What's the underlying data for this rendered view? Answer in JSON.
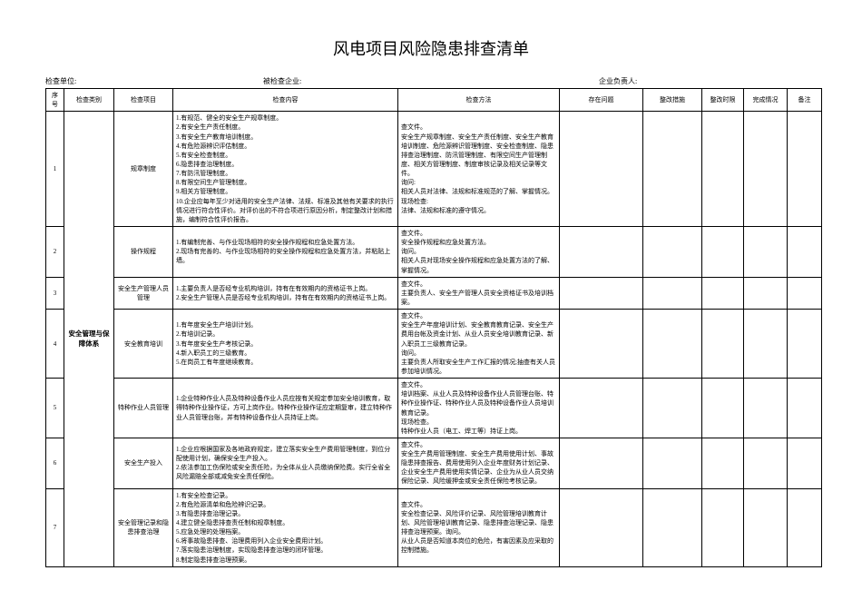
{
  "title": "风电项目风险隐患排查清单",
  "meta": {
    "label_check_unit": "检查单位:",
    "label_checked_co": "被检查企业:",
    "label_owner": "企业负责人:"
  },
  "headers": {
    "seq": "序号",
    "cat": "检查类别",
    "item": "检查项目",
    "content": "检查内容",
    "method": "检查方法",
    "prob": "存在问题",
    "meas": "整改措施",
    "time": "整改时限",
    "done": "完成情况",
    "note": "备注"
  },
  "category": "安全管理与保障体系",
  "rows": [
    {
      "seq": "1",
      "item": "规章制度",
      "content": "1.有规范、健全的安全生产规章制度。\n2.有安全生产责任制度。\n3.有安全生产教育培训制度。\n4.有危险源辨识评估制度。\n5.有安全检查制度。\n6.隐患排查治理制度。\n7.有防汛管理制度。\n8.有限空间生产管理制度。\n9.相关方管理制度。\n10.企业应每年至少对适用的安全生产法律、法规、标准及其他有关要求的执行情况进行符合性评价。对评价出的不符合项进行原因分析，制定整改计划和措施，编制符合性评价报告。",
      "method": "查文件。\n安全生产规章制度、安全生产责任制度、安全生产教育培训制度、危险源辨识管理制度、安全检查制度、隐患排查治理制度、防汛管理制度、有限空间生产管理制度、相关方管理制度、制度审核记录及相关记录等文件。\n询问:\n相关人员对法律、法规和标准规范的了解、掌握情况。\n现场检查:\n法律、法规和标准的遵守情况。"
    },
    {
      "seq": "2",
      "item": "操作规程",
      "content": "1.有编制完善、与作业现场相符的安全操作规程和应急处置方法。\n2.现场有完善的、与作业现场相符的安全操作规程和应急处置方法，并粘贴上墙。",
      "method": "查文件。\n安全操作规程和应急处置方法。\n询问。\n相关人员对现场安全操作规程和应急处置方法的了解、掌握情况。"
    },
    {
      "seq": "3",
      "item": "安全生产管理人员管理",
      "content": "1.主要负责人是否经专业机构培训，持有在有效期内的资格证书上岗。\n2.安全生产管理人员是否经专业机构培训，持有在有效期内的资格证书上岗。",
      "method": "查文件。\n主要负责人、安全生产管理人员安全资格证书及培训档案。"
    },
    {
      "seq": "4",
      "item": "安全教育培训",
      "content": "1.有年度安全生产培训计划。\n2.有培训记录。\n3.有年度安全生产考核记录。\n4.新入职员工的三级教育。\n5.在岗员工有年度继续教育。",
      "method": "查文件。\n安全生产年度培训计划、安全教育教育记录、安全生产费用台帐及资金计划、从业人员安全培训教育记录、新入职员工三级教育记录。\n询问。\n主要负责人所取安全生产工作汇报的情况;抽查有关人员参加培训情况。"
    },
    {
      "seq": "5",
      "item": "特种作业人员管理",
      "content": "1.企业特种作业人员及特种设备作业人员应按有关规定参加安全培训教育，取得特种作业操作证，方可上岗作业。特种作业操作证应定期复审，建立特种作业人员管理台账，并有特种设备作业人员持证上岗。",
      "method": "查文件。\n培训档案、从业人员及特种设备作业人员管理台账、特种作业操作证、特种作业人员及特种设备作业人员培训教育记录。\n现场检查。\n特种作业人员（电工、焊工等）持证上岗。"
    },
    {
      "seq": "6",
      "item": "安全生产投入",
      "content": "1.企业应根据国家及各地政府规定，建立落实安全生产费用管理制度，到位分配使用计划，确保安全生产投入。\n2.依法参加工伤保险或安全责任险，为全体从业人员缴纳保险费。实行全省全风险漏赔全部或减免安全责任保险。",
      "method": "查文件。\n安全生产费用管理制度、安全生产费用使用计划、事故隐患排查报告、费用使用列入企业年度财务计划记录、企业安全生产费用使用实情记录、企业为从业人员交纳保险记录、风险缓押金或安全责任保险考核记录。"
    },
    {
      "seq": "7",
      "item": "安全管理记录和隐患排查治理",
      "content": "1.有安全检查记录。\n2.有危险源清单和危险辨识记录。\n3.有隐患排查治理记录。\n4.建立健全隐患排查责任制和规章制度。\n5.应急处理的处理档案。\n6.将事故隐患排查、治理费用列入企业安全费用计划。\n7.落实隐患治理制度，实现隐患排查治理的闭环管理。\n8.制定隐患排查治理预案。",
      "method": "查文件。\n安全检查记录、风险评价记录、风险管理培训教育计划、风险管理培训教育记录、隐患排查治理记录、隐患排查治理预案。询问。\n从业人员是否知道本岗位的危险，有害因素及应采取的控制措施。"
    }
  ]
}
